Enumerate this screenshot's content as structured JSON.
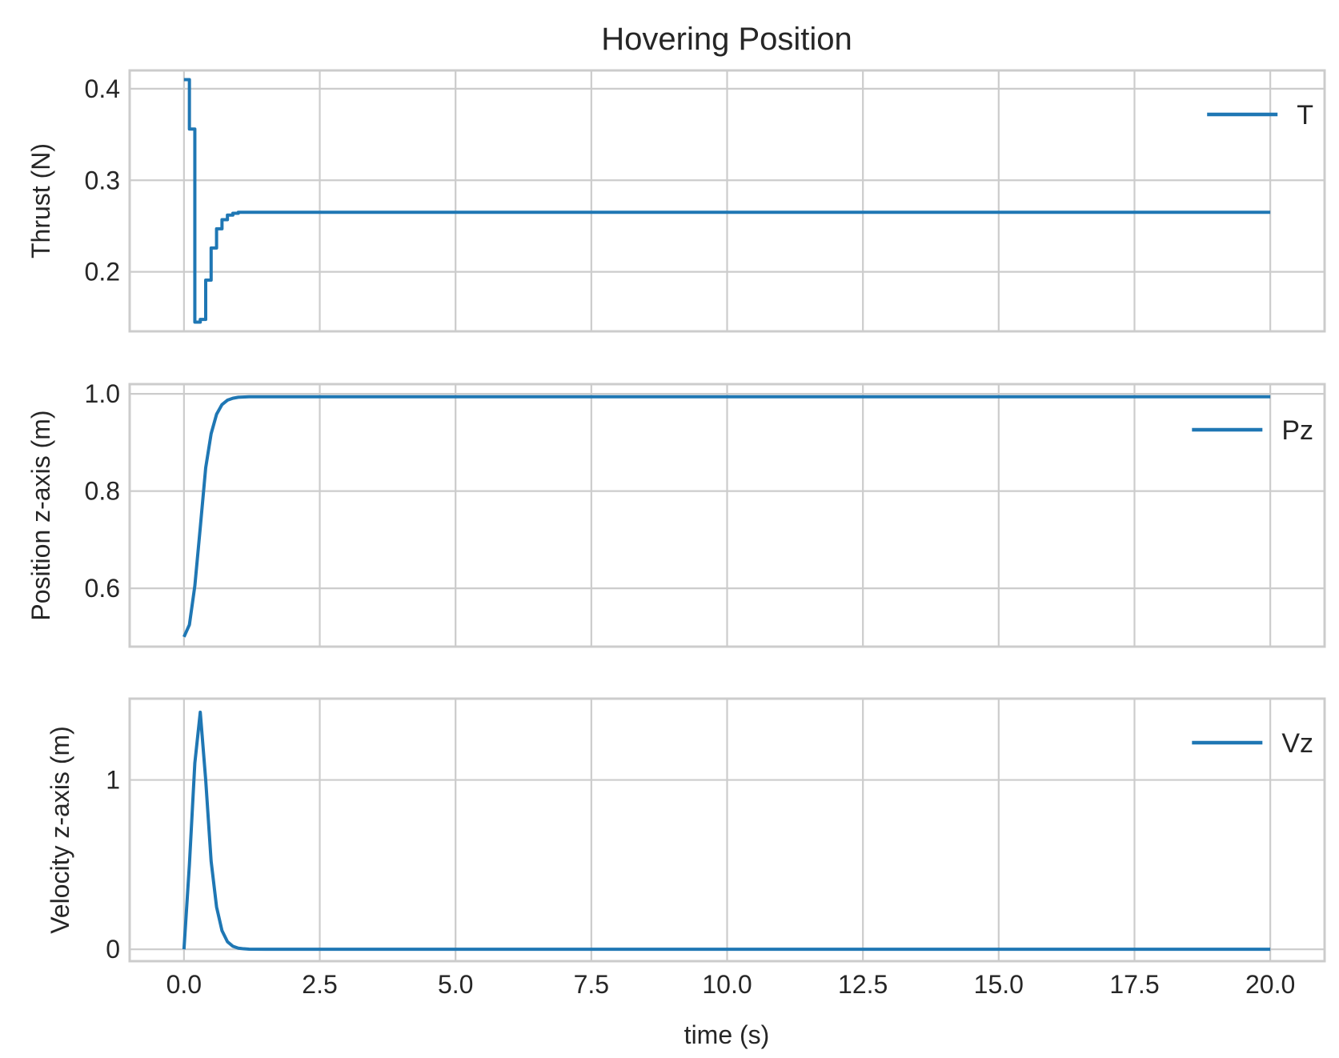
{
  "chart_data": {
    "title": "Hovering Position",
    "xlabel": "time (s)",
    "xlim": [
      -1.0,
      21.0
    ],
    "xticks": [
      0.0,
      2.5,
      5.0,
      7.5,
      10.0,
      12.5,
      15.0,
      17.5,
      20.0
    ],
    "xtick_labels": [
      "0.0",
      "2.5",
      "5.0",
      "7.5",
      "10.0",
      "12.5",
      "15.0",
      "17.5",
      "20.0"
    ],
    "subplots": [
      {
        "type": "line",
        "ylabel": "Thrust (N)",
        "ylim": [
          0.135,
          0.42
        ],
        "yticks": [
          0.2,
          0.3,
          0.4
        ],
        "ytick_labels": [
          "0.2",
          "0.3",
          "0.4"
        ],
        "grid": true,
        "legend_position": "upper-right",
        "step": true,
        "series": [
          {
            "name": "T",
            "color": "#1f77b4",
            "x": [
              0.0,
              0.1,
              0.2,
              0.3,
              0.4,
              0.5,
              0.6,
              0.7,
              0.8,
              0.9,
              1.0,
              20.0
            ],
            "y": [
              0.41,
              0.356,
              0.145,
              0.148,
              0.191,
              0.226,
              0.247,
              0.257,
              0.262,
              0.264,
              0.265,
              0.265
            ]
          }
        ]
      },
      {
        "type": "line",
        "ylabel": "Position z-axis (m)",
        "ylim": [
          0.48,
          1.02
        ],
        "yticks": [
          0.6,
          0.8,
          1.0
        ],
        "ytick_labels": [
          "0.6",
          "0.8",
          "1.0"
        ],
        "grid": true,
        "legend_position": "upper-right",
        "step": false,
        "series": [
          {
            "name": "Pz",
            "color": "#1f77b4",
            "x": [
              0.0,
              0.1,
              0.2,
              0.3,
              0.4,
              0.5,
              0.6,
              0.7,
              0.8,
              0.9,
              1.0,
              1.2,
              1.5,
              20.0
            ],
            "y": [
              0.5,
              0.525,
              0.605,
              0.725,
              0.848,
              0.918,
              0.958,
              0.978,
              0.987,
              0.991,
              0.993,
              0.994,
              0.994,
              0.994
            ]
          }
        ]
      },
      {
        "type": "line",
        "ylabel": "Velocity z-axis (m)",
        "ylim": [
          -0.07,
          1.48
        ],
        "yticks": [
          0,
          1
        ],
        "ytick_labels": [
          "0",
          "1"
        ],
        "grid": true,
        "legend_position": "upper-right",
        "step": false,
        "series": [
          {
            "name": "Vz",
            "color": "#1f77b4",
            "x": [
              0.0,
              0.1,
              0.2,
              0.3,
              0.4,
              0.5,
              0.6,
              0.7,
              0.8,
              0.9,
              1.0,
              1.1,
              1.2,
              1.5,
              20.0
            ],
            "y": [
              0.0,
              0.5,
              1.1,
              1.4,
              1.0,
              0.52,
              0.25,
              0.11,
              0.045,
              0.018,
              0.007,
              0.003,
              0.001,
              0.0,
              0.0
            ]
          }
        ]
      }
    ]
  }
}
